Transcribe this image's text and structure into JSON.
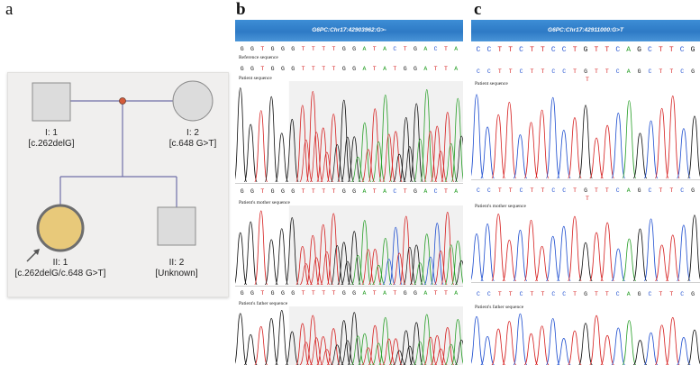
{
  "panels": {
    "a": "a",
    "b": "b",
    "c": "c"
  },
  "pedigree": {
    "father_label": "I: 1",
    "father_genotype": "[c.262delG]",
    "mother_label": "I: 2",
    "mother_genotype": "[c.648 G>T]",
    "proband_label": "II: 1",
    "proband_genotype": "[c.262delG/c.648 G>T]",
    "sibling_label": "II: 2",
    "sibling_genotype": "[Unknown]"
  },
  "panel_b": {
    "title": "G6PC:Chr17:42903962:G>-",
    "reference_bases": [
      "G",
      "G",
      "T",
      "G",
      "G",
      "G",
      "T",
      "T",
      "T",
      "T",
      "G",
      "G",
      "A",
      "T",
      "A",
      "C",
      "T",
      "G",
      "A",
      "C",
      "T",
      "A"
    ],
    "patient_bases": [
      "G",
      "G",
      "T",
      "G",
      "G",
      "G",
      "T",
      "T",
      "T",
      "T",
      "G",
      "G",
      "A",
      "T",
      "A",
      "T",
      "G",
      "G",
      "A",
      "T",
      "T",
      "A"
    ],
    "mother_bases": [
      "G",
      "G",
      "T",
      "G",
      "G",
      "G",
      "T",
      "T",
      "T",
      "T",
      "G",
      "G",
      "A",
      "T",
      "A",
      "C",
      "T",
      "G",
      "A",
      "C",
      "T",
      "A"
    ],
    "father_bases": [
      "G",
      "G",
      "T",
      "G",
      "G",
      "G",
      "T",
      "T",
      "T",
      "T",
      "G",
      "G",
      "A",
      "T",
      "A",
      "T",
      "G",
      "G",
      "A",
      "T",
      "T",
      "A"
    ],
    "reference_label": "Reference sequence",
    "patient_label": "Patient sequence",
    "mother_label": "Patient's mother sequence",
    "father_label": "Patient's father sequence"
  },
  "panel_c": {
    "title": "G6PC:Chr17:42911000:G>T",
    "reference_bases": [
      "C",
      "C",
      "T",
      "T",
      "C",
      "T",
      "T",
      "C",
      "C",
      "T",
      "G",
      "T",
      "T",
      "C",
      "A",
      "G",
      "C",
      "T",
      "T",
      "C",
      "G"
    ],
    "patient_bases": [
      "C",
      "C",
      "T",
      "T",
      "C",
      "T",
      "T",
      "C",
      "C",
      "T",
      "G",
      "T",
      "T",
      "C",
      "A",
      "G",
      "C",
      "T",
      "T",
      "C",
      "G"
    ],
    "mother_bases": [
      "C",
      "C",
      "T",
      "T",
      "C",
      "T",
      "T",
      "C",
      "C",
      "T",
      "G",
      "T",
      "T",
      "C",
      "A",
      "G",
      "C",
      "T",
      "T",
      "C",
      "G"
    ],
    "father_bases": [
      "C",
      "C",
      "T",
      "T",
      "C",
      "T",
      "T",
      "C",
      "C",
      "T",
      "G",
      "T",
      "T",
      "C",
      "A",
      "G",
      "C",
      "T",
      "T",
      "C",
      "G"
    ],
    "patient_variant_mark": "T",
    "mother_variant_mark": "T",
    "patient_label": "Patient sequence",
    "mother_label": "Patient's mother sequence",
    "father_label": "Patient's father sequence"
  },
  "colors": {
    "A": "#2aa02a",
    "C": "#1f4fd0",
    "G": "#111111",
    "T": "#d62020",
    "pedigree_line": "#6f6fa8",
    "node": "#d45a3a",
    "proband_fill": "#e8c97a",
    "banner": "#3d8ed6"
  }
}
